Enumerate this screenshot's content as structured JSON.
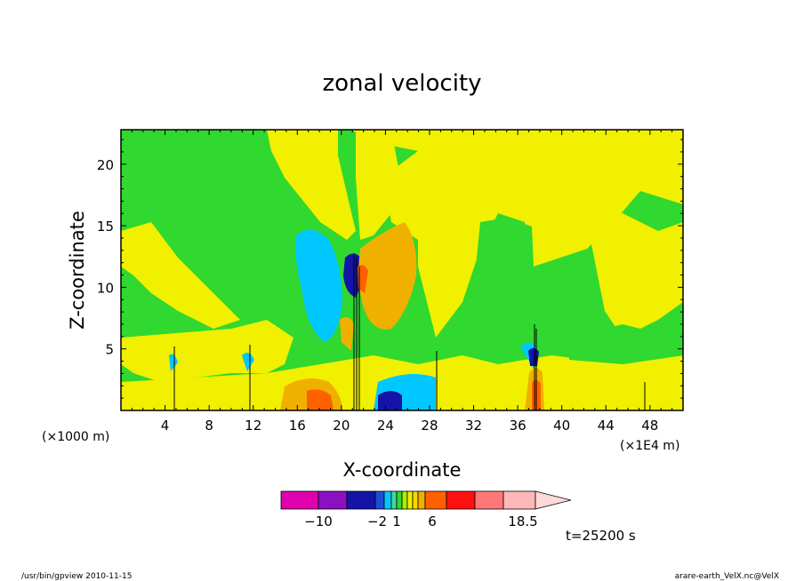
{
  "chart_data": {
    "type": "heatmap",
    "title": "zonal velocity",
    "xlabel": "X-coordinate",
    "ylabel": "Z-coordinate",
    "x_unit_left": "(×1000 m)",
    "x_unit_right": "(×1E4 m)",
    "x_ticks": [
      "4",
      "8",
      "12",
      "16",
      "20",
      "24",
      "28",
      "32",
      "36",
      "40",
      "44",
      "48"
    ],
    "y_ticks": [
      "5",
      "10",
      "15",
      "20"
    ],
    "xlim": [
      0,
      51
    ],
    "ylim": [
      0,
      22.8
    ],
    "time_label": "t=25200 s",
    "colorbar": {
      "colors": [
        "#e000b0",
        "#8a10c0",
        "#1414a8",
        "#1e4cd8",
        "#00c8ff",
        "#40d8a0",
        "#30d830",
        "#a8f000",
        "#f0f000",
        "#f8d800",
        "#f0b000",
        "#ff6000",
        "#ff1010",
        "#ff7878",
        "#ffb8b8",
        "#ffd8d8"
      ],
      "tick_labels": [
        "−10",
        "−2",
        "1",
        "6",
        "18.5"
      ]
    },
    "features": [
      {
        "kind": "negative-core",
        "x": 21.0,
        "z": 11.5,
        "level": "strong"
      },
      {
        "kind": "positive-core",
        "x": 23.0,
        "z": 10.0,
        "level": "moderate"
      },
      {
        "kind": "negative-core",
        "x": 23.5,
        "z": 1.0,
        "level": "strong"
      },
      {
        "kind": "positive-core",
        "x": 19.0,
        "z": 1.5,
        "level": "moderate"
      },
      {
        "kind": "negative-core",
        "x": 37.5,
        "z": 4.5,
        "level": "moderate"
      },
      {
        "kind": "positive-core",
        "x": 37.5,
        "z": 2.0,
        "level": "moderate"
      }
    ]
  },
  "footer": {
    "left": "/usr/bin/gpview   2010-11-15",
    "right": "arare-earth_VelX.nc@VelX"
  }
}
